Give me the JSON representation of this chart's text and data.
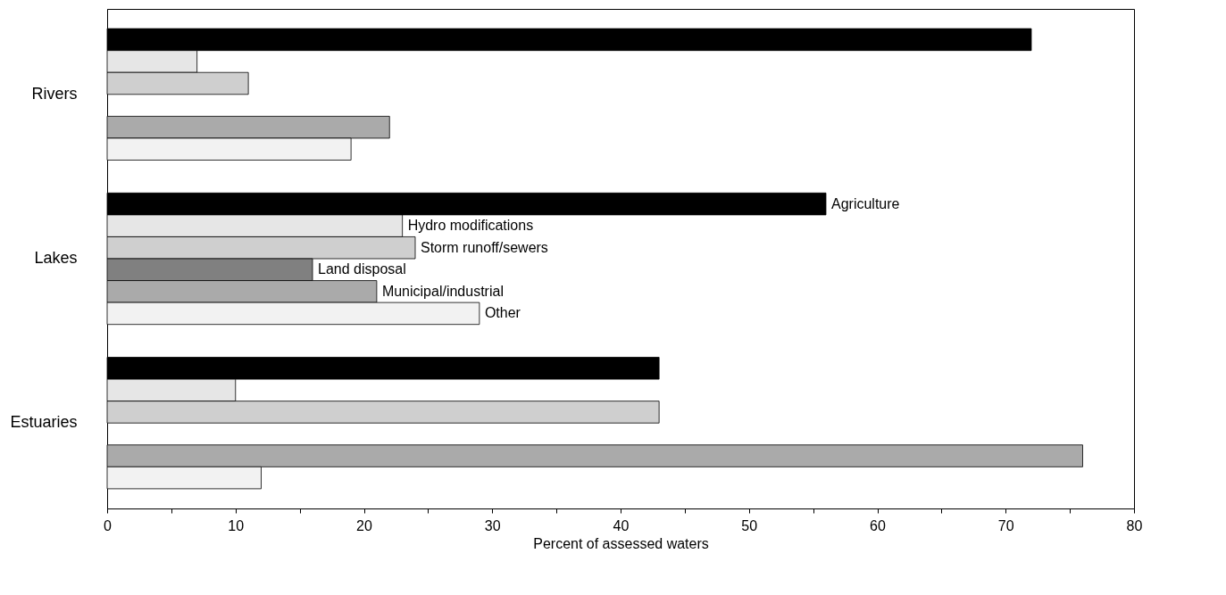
{
  "chart_data": {
    "type": "bar",
    "orientation": "horizontal",
    "xlabel": "Percent of assessed waters",
    "categories": [
      "Rivers",
      "Lakes",
      "Estuaries"
    ],
    "series": [
      {
        "name": "Agriculture",
        "color": "#000000",
        "values": [
          72,
          56,
          43
        ]
      },
      {
        "name": "Hydro modifications",
        "color": "#e6e6e6",
        "values": [
          7,
          23,
          10
        ]
      },
      {
        "name": "Storm runoff/sewers",
        "color": "#cfcfcf",
        "values": [
          11,
          24,
          43
        ]
      },
      {
        "name": "Land disposal",
        "color": "#808080",
        "values": [
          null,
          16,
          null
        ]
      },
      {
        "name": "Municipal/industrial",
        "color": "#aaaaaa",
        "values": [
          22,
          21,
          76
        ]
      },
      {
        "name": "Other",
        "color": "#f2f2f2",
        "values": [
          19,
          29,
          12
        ]
      }
    ],
    "xlim": [
      0,
      80
    ],
    "xticks": [
      0,
      {
        "value": 5,
        "label": null
      },
      10,
      {
        "value": 15,
        "label": null
      },
      20,
      {
        "value": 25,
        "label": null
      },
      30,
      {
        "value": 35,
        "label": null
      },
      40,
      {
        "value": 45,
        "label": null
      },
      50,
      {
        "value": 55,
        "label": null
      },
      60,
      {
        "value": 65,
        "label": null
      },
      70,
      {
        "value": 75,
        "label": null
      },
      80
    ],
    "grid": false,
    "legend": false
  }
}
